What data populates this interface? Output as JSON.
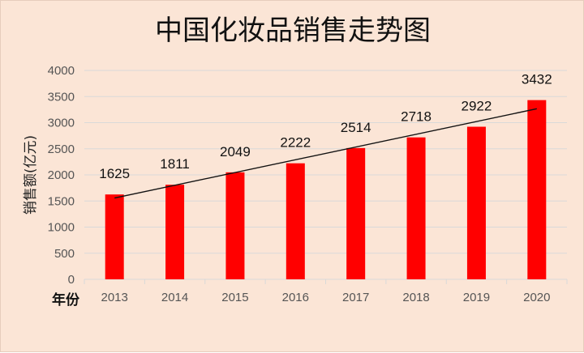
{
  "chart_data": {
    "type": "bar",
    "title": "中国化妆品销售走势图",
    "ylabel": "销售额(亿元)",
    "xlabel": "年份",
    "categories": [
      "2013",
      "2014",
      "2015",
      "2016",
      "2017",
      "2018",
      "2019",
      "2020"
    ],
    "series": [
      {
        "values": [
          1625,
          1811,
          2049,
          2222,
          2514,
          2718,
          2922,
          3432
        ]
      }
    ],
    "data_labels": [
      "1625",
      "1811",
      "2049",
      "2222",
      "2514",
      "2718",
      "2922",
      "3432"
    ],
    "ylim": [
      0,
      4000
    ],
    "yticks": [
      "0",
      "500",
      "1000",
      "1500",
      "2000",
      "2500",
      "3000",
      "3500",
      "4000"
    ],
    "ytick_values": [
      0,
      500,
      1000,
      1500,
      2000,
      2500,
      3000,
      3500,
      4000
    ],
    "grid": true,
    "trendline": {
      "type": "linear"
    },
    "colors": {
      "bar": "#ff0000",
      "background": "#fbe5d6",
      "trendline": "#111111",
      "grid": "#d9d9d9"
    }
  }
}
